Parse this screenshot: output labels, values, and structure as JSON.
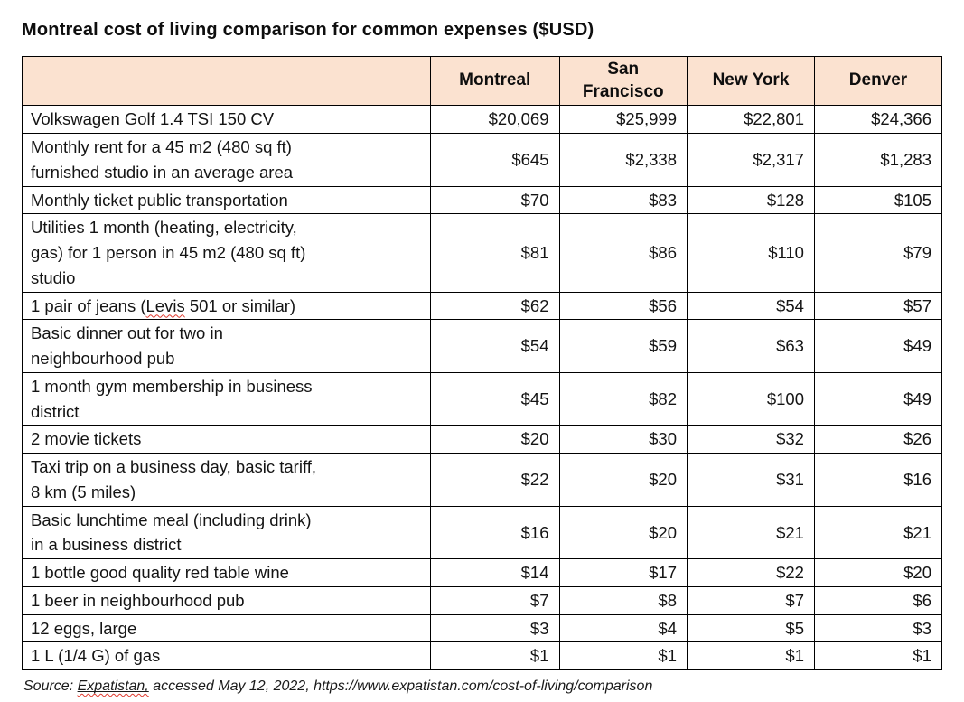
{
  "chart_data": {
    "type": "table",
    "title": "Montreal cost of living comparison for common expenses ($USD)",
    "columns": [
      "",
      "Montreal",
      "San\nFrancisco",
      "New York",
      "Denver"
    ],
    "rows": [
      {
        "label": "Volkswagen Golf 1.4 TSI 150 CV",
        "values": [
          "$20,069",
          "$25,999",
          "$22,801",
          "$24,366"
        ]
      },
      {
        "label": "Monthly rent for a 45 m2 (480 sq ft)\nfurnished studio in an average area",
        "values": [
          "$645",
          "$2,338",
          "$2,317",
          "$1,283"
        ]
      },
      {
        "label": "Monthly ticket public transportation",
        "values": [
          "$70",
          "$83",
          "$128",
          "$105"
        ]
      },
      {
        "label": "Utilities 1 month (heating, electricity,\ngas) for 1 person in 45 m2 (480 sq ft)\nstudio",
        "values": [
          "$81",
          "$86",
          "$110",
          "$79"
        ]
      },
      {
        "label": "1 pair of jeans (Levis 501 or similar)",
        "misspelled_word": "Levis",
        "values": [
          "$62",
          "$56",
          "$54",
          "$57"
        ]
      },
      {
        "label": "Basic dinner out for two in\nneighbourhood pub",
        "values": [
          "$54",
          "$59",
          "$63",
          "$49"
        ]
      },
      {
        "label": "1 month gym membership in business\ndistrict",
        "values": [
          "$45",
          "$82",
          "$100",
          "$49"
        ]
      },
      {
        "label": "2 movie tickets",
        "values": [
          "$20",
          "$30",
          "$32",
          "$26"
        ]
      },
      {
        "label": "Taxi trip on a business day, basic tariff,\n8 km (5 miles)",
        "values": [
          "$22",
          "$20",
          "$31",
          "$16"
        ]
      },
      {
        "label": "Basic lunchtime meal (including drink)\nin a business district",
        "values": [
          "$16",
          "$20",
          "$21",
          "$21"
        ]
      },
      {
        "label": "1 bottle good quality red table wine",
        "values": [
          "$14",
          "$17",
          "$22",
          "$20"
        ]
      },
      {
        "label": "1 beer in neighbourhood pub",
        "values": [
          "$7",
          "$8",
          "$7",
          "$6"
        ]
      },
      {
        "label": "12 eggs, large",
        "values": [
          "$3",
          "$4",
          "$5",
          "$3"
        ]
      },
      {
        "label": "1 L (1/4 G) of gas",
        "values": [
          "$1",
          "$1",
          "$1",
          "$1"
        ]
      }
    ]
  },
  "source": {
    "prefix": "Source: ",
    "link_text": "Expatistan,",
    "suffix": " accessed May 12, 2022, https://www.expatistan.com/cost-of-living/comparison"
  },
  "colors": {
    "header_bg": "#fbe2d0",
    "border": "#000000",
    "squiggle": "#e03a2f",
    "text": "#121212"
  }
}
